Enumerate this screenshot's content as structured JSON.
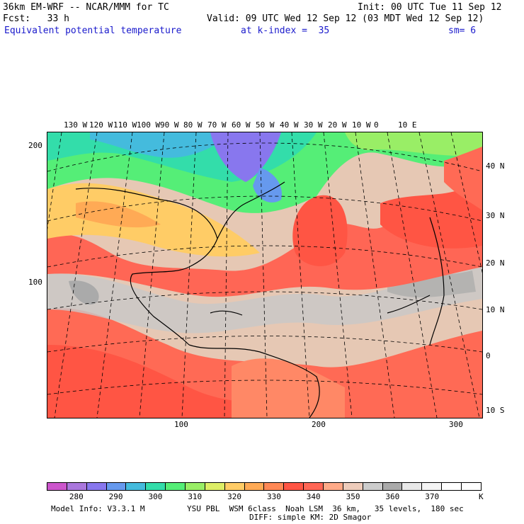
{
  "header": {
    "line1_left": "36km EM-WRF -- NCAR/MMM for TC",
    "line1_right": "Init: 00 UTC Tue 11 Sep 12",
    "line2_left": "Fcst:   33 h",
    "line2_right": "Valid: 09 UTC Wed 12 Sep 12 (03 MDT Wed 12 Sep 12)",
    "field_name": "Equivalent potential temperature",
    "level": "at k-index =  35",
    "smoothing": "sm= 6"
  },
  "map": {
    "lon_labels": [
      "130 W",
      "120 W",
      "110 W",
      "100 W",
      "90 W",
      "80 W",
      "70 W",
      "60 W",
      "50 W",
      "40 W",
      "30 W",
      "20 W",
      "10 W",
      "0",
      "10 E"
    ],
    "lat_labels": [
      "40 N",
      "30 N",
      "20 N",
      "10 N",
      "0",
      "10 S"
    ],
    "x_grid_labels": [
      "100",
      "200",
      "300"
    ],
    "y_grid_labels": [
      "200",
      "100"
    ]
  },
  "colorbar": {
    "colors": [
      "#cc55cc",
      "#aa77dd",
      "#8877ee",
      "#6699ee",
      "#44bbdd",
      "#33ddaa",
      "#55ee77",
      "#99ee66",
      "#ddee66",
      "#ffcc66",
      "#ffaa55",
      "#ff8855",
      "#ff5544",
      "#ff6655",
      "#ffaa88",
      "#eeccbb",
      "#cccccc",
      "#aaaaaa",
      "#e8e8e8",
      "#f4f4f4",
      "#ffffff",
      "#ffffff"
    ],
    "labels": [
      "280",
      "290",
      "300",
      "310",
      "320",
      "330",
      "340",
      "350",
      "360",
      "370"
    ],
    "unit": "K"
  },
  "footer": {
    "model_info": "Model Info: V3.3.1 M",
    "physics_line1": "YSU PBL  WSM 6class  Noah LSM  36 km,   35 levels,  180 sec",
    "physics_line2": "DIFF: simple KM: 2D Smagor"
  }
}
